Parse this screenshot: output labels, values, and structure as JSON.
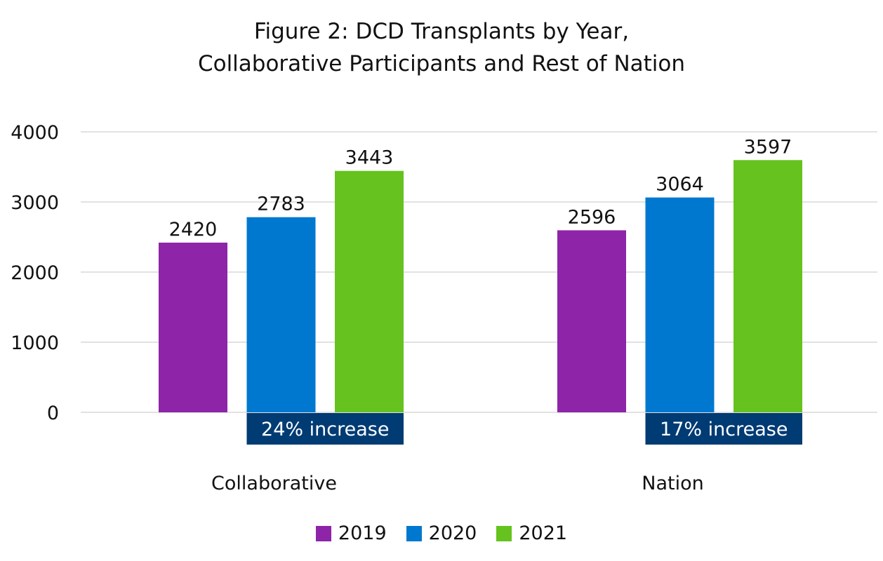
{
  "chart_data": {
    "type": "bar",
    "title_lines": [
      "Figure 2: DCD Transplants by Year,",
      "Collaborative Participants and Rest of Nation"
    ],
    "categories": [
      "Collaborative",
      "Nation"
    ],
    "series": [
      {
        "name": "2019",
        "color": "#8E24A8",
        "values": [
          2420,
          2596
        ]
      },
      {
        "name": "2020",
        "color": "#0078CF",
        "values": [
          2783,
          3064
        ]
      },
      {
        "name": "2021",
        "color": "#66C21E",
        "values": [
          3443,
          3597
        ]
      }
    ],
    "ylim": [
      0,
      4000
    ],
    "yticks": [
      "0",
      "1000",
      "2000",
      "3000",
      "4000"
    ],
    "grid": true,
    "legend": "bottom",
    "annotations": [
      {
        "category": "Collaborative",
        "text": "24% increase",
        "color": "#003B73"
      },
      {
        "category": "Nation",
        "text": "17% increase",
        "color": "#003B73"
      }
    ]
  }
}
